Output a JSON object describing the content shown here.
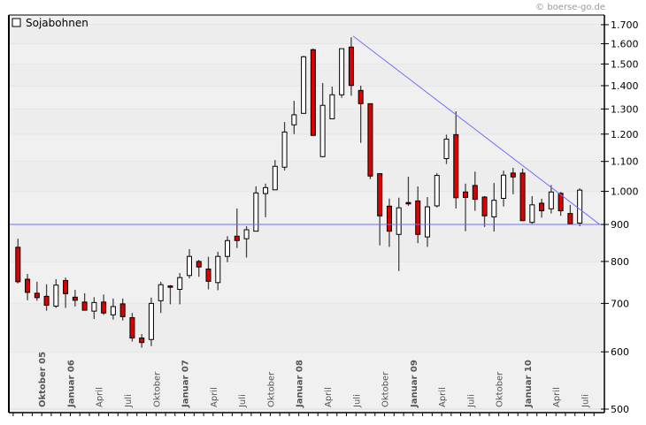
{
  "source": "© boerse-go.de",
  "chart_data": {
    "type": "candlestick",
    "title": "Sojabohnen",
    "legend": [
      "Sojabohnen"
    ],
    "legend_placement": "top-left",
    "yscale": "log",
    "ylim": [
      500,
      1700
    ],
    "yticks": [
      1700,
      1600,
      1500,
      1400,
      1300,
      1200,
      1100,
      1000,
      900,
      800,
      700,
      600,
      500
    ],
    "ytick_labels": [
      "1.700",
      "1.600",
      "1.500",
      "1.400",
      "1.300",
      "1.200",
      "1.100",
      "1.000",
      "900",
      "800",
      "700",
      "600",
      "500"
    ],
    "grid": true,
    "period": "monthly",
    "first_candle": "Juli 2005",
    "last_candle": "Juni 2010",
    "ohlc": [
      [
        837,
        860,
        746,
        750
      ],
      [
        756,
        769,
        707,
        725
      ],
      [
        723,
        750,
        706,
        713
      ],
      [
        716,
        744,
        684,
        696
      ],
      [
        694,
        756,
        690,
        742
      ],
      [
        753,
        760,
        690,
        722
      ],
      [
        714,
        731,
        693,
        707
      ],
      [
        703,
        723,
        684,
        685
      ],
      [
        683,
        714,
        666,
        702
      ],
      [
        703,
        720,
        675,
        679
      ],
      [
        675,
        711,
        665,
        693
      ],
      [
        699,
        711,
        663,
        671
      ],
      [
        669,
        679,
        620,
        627
      ],
      [
        627,
        635,
        608,
        618
      ],
      [
        624,
        713,
        611,
        700
      ],
      [
        706,
        750,
        679,
        743
      ],
      [
        740,
        742,
        698,
        739
      ],
      [
        732,
        771,
        698,
        760
      ],
      [
        765,
        832,
        758,
        813
      ],
      [
        800,
        804,
        762,
        786
      ],
      [
        781,
        812,
        732,
        751
      ],
      [
        748,
        825,
        730,
        813
      ],
      [
        813,
        867,
        798,
        855
      ],
      [
        867,
        947,
        835,
        855
      ],
      [
        860,
        895,
        810,
        885
      ],
      [
        881,
        1016,
        881,
        995
      ],
      [
        993,
        1025,
        921,
        1012
      ],
      [
        1005,
        1105,
        1005,
        1083
      ],
      [
        1080,
        1247,
        1069,
        1208
      ],
      [
        1236,
        1334,
        1200,
        1276
      ],
      [
        1282,
        1540,
        1280,
        1535
      ],
      [
        1570,
        1575,
        1195,
        1195
      ],
      [
        1117,
        1412,
        1115,
        1315
      ],
      [
        1260,
        1396,
        1260,
        1360
      ],
      [
        1360,
        1575,
        1347,
        1575
      ],
      [
        1583,
        1633,
        1356,
        1401
      ],
      [
        1379,
        1400,
        1167,
        1322
      ],
      [
        1322,
        1322,
        1040,
        1050
      ],
      [
        1058,
        1060,
        842,
        925
      ],
      [
        954,
        977,
        838,
        881
      ],
      [
        872,
        980,
        776,
        949
      ],
      [
        965,
        1048,
        955,
        962
      ],
      [
        970,
        1016,
        848,
        872
      ],
      [
        865,
        982,
        838,
        952
      ],
      [
        955,
        1060,
        950,
        1052
      ],
      [
        1110,
        1198,
        1091,
        1181
      ],
      [
        1198,
        1290,
        947,
        980
      ],
      [
        998,
        1025,
        881,
        981
      ],
      [
        1019,
        1065,
        940,
        975
      ],
      [
        982,
        985,
        893,
        925
      ],
      [
        922,
        1027,
        880,
        972
      ],
      [
        978,
        1068,
        953,
        1053
      ],
      [
        1060,
        1078,
        991,
        1047
      ],
      [
        1060,
        1075,
        910,
        911
      ],
      [
        906,
        985,
        902,
        958
      ],
      [
        963,
        977,
        920,
        940
      ],
      [
        946,
        1020,
        932,
        998
      ],
      [
        994,
        998,
        925,
        940
      ],
      [
        932,
        958,
        902,
        902
      ],
      [
        904,
        1010,
        895,
        1004
      ]
    ],
    "x_labels": [
      {
        "month_index": 3,
        "label": "Oktober 05",
        "bold": true
      },
      {
        "month_index": 6,
        "label": "Januar 06",
        "bold": true
      },
      {
        "month_index": 9,
        "label": "April",
        "bold": false
      },
      {
        "month_index": 12,
        "label": "Juli",
        "bold": false
      },
      {
        "month_index": 15,
        "label": "Oktober",
        "bold": false
      },
      {
        "month_index": 18,
        "label": "Januar 07",
        "bold": true
      },
      {
        "month_index": 21,
        "label": "April",
        "bold": false
      },
      {
        "month_index": 24,
        "label": "Juli",
        "bold": false
      },
      {
        "month_index": 27,
        "label": "Oktober",
        "bold": false
      },
      {
        "month_index": 30,
        "label": "Januar 08",
        "bold": true
      },
      {
        "month_index": 33,
        "label": "April",
        "bold": false
      },
      {
        "month_index": 36,
        "label": "Juli",
        "bold": false
      },
      {
        "month_index": 39,
        "label": "Oktober",
        "bold": false
      },
      {
        "month_index": 42,
        "label": "Januar 09",
        "bold": true
      },
      {
        "month_index": 45,
        "label": "April",
        "bold": false
      },
      {
        "month_index": 48,
        "label": "Juli",
        "bold": false
      },
      {
        "month_index": 51,
        "label": "Oktober",
        "bold": false
      },
      {
        "month_index": 54,
        "label": "Januar 10",
        "bold": true
      },
      {
        "month_index": 57,
        "label": "April",
        "bold": false
      },
      {
        "month_index": 60,
        "label": "Juli",
        "bold": false
      }
    ],
    "annotations": {
      "support_line": 900,
      "trend_line": {
        "from": {
          "month_index": 35,
          "price": 1640
        },
        "to": {
          "month_index": 61.1,
          "price": 900
        }
      }
    },
    "colors": {
      "up": "#ffffff",
      "down": "#dd0000",
      "line": "#6f6fff",
      "grid": "#dcdcdc",
      "background": "#f0f0f0"
    }
  }
}
